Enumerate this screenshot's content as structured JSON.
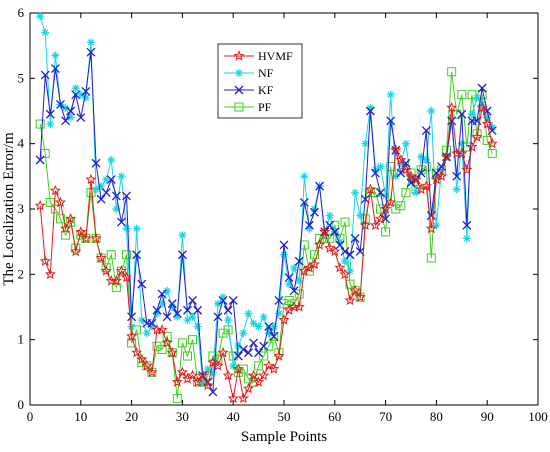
{
  "chart_data": {
    "type": "line",
    "title": "",
    "xlabel": "Sample Points",
    "ylabel": "The Localization Error/m",
    "xlim": [
      0,
      100
    ],
    "ylim": [
      0,
      6
    ],
    "xticks": [
      0,
      10,
      20,
      30,
      40,
      50,
      60,
      70,
      80,
      90,
      100
    ],
    "yticks": [
      0,
      1,
      2,
      3,
      4,
      5,
      6
    ],
    "grid": false,
    "legend_position": "top-center",
    "x": [
      2,
      3,
      4,
      5,
      6,
      7,
      8,
      9,
      10,
      11,
      12,
      13,
      14,
      15,
      16,
      17,
      18,
      19,
      20,
      21,
      22,
      23,
      24,
      25,
      26,
      27,
      28,
      29,
      30,
      31,
      32,
      33,
      34,
      35,
      36,
      37,
      38,
      39,
      40,
      41,
      42,
      43,
      44,
      45,
      46,
      47,
      48,
      49,
      50,
      51,
      52,
      53,
      54,
      55,
      56,
      57,
      58,
      59,
      60,
      61,
      62,
      63,
      64,
      65,
      66,
      67,
      68,
      69,
      70,
      71,
      72,
      73,
      74,
      75,
      76,
      77,
      78,
      79,
      80,
      81,
      82,
      83,
      84,
      85,
      86,
      87,
      88,
      89,
      90,
      91
    ],
    "series": [
      {
        "name": "HVMF",
        "color": "#e31a1c",
        "marker": "star",
        "values": [
          3.05,
          2.2,
          2.0,
          3.28,
          3.1,
          2.7,
          2.85,
          2.35,
          2.65,
          2.55,
          3.45,
          2.55,
          2.25,
          2.05,
          1.9,
          1.9,
          2.05,
          1.95,
          1.05,
          0.8,
          0.7,
          0.6,
          0.5,
          1.15,
          1.15,
          0.95,
          0.8,
          0.35,
          0.5,
          0.4,
          0.45,
          0.35,
          0.45,
          0.3,
          0.65,
          0.6,
          0.8,
          0.45,
          0.1,
          0.55,
          0.1,
          0.25,
          0.45,
          0.35,
          0.45,
          0.6,
          0.55,
          0.75,
          1.3,
          1.45,
          1.5,
          1.5,
          2.05,
          2.1,
          2.15,
          2.45,
          2.65,
          2.4,
          2.35,
          2.1,
          2.0,
          1.6,
          1.75,
          1.65,
          2.75,
          3.3,
          2.75,
          2.85,
          3.0,
          3.1,
          3.9,
          3.75,
          3.6,
          3.5,
          3.45,
          3.3,
          3.35,
          2.7,
          3.45,
          3.5,
          3.8,
          4.55,
          3.85,
          3.85,
          3.6,
          3.95,
          4.1,
          4.55,
          4.3,
          4.0
        ]
      },
      {
        "name": "NF",
        "color": "#19d3e8",
        "marker": "asterisk",
        "values": [
          5.95,
          5.7,
          4.3,
          5.35,
          4.6,
          4.55,
          4.4,
          4.85,
          4.75,
          4.7,
          5.55,
          3.3,
          3.35,
          3.45,
          3.75,
          3.0,
          3.5,
          2.7,
          1.2,
          2.7,
          1.3,
          1.1,
          1.2,
          1.4,
          1.55,
          1.75,
          1.5,
          1.35,
          2.6,
          1.3,
          1.35,
          1.2,
          0.35,
          0.55,
          0.5,
          1.55,
          1.65,
          1.3,
          0.6,
          0.9,
          1.1,
          1.4,
          1.25,
          1.2,
          1.35,
          1.1,
          1.2,
          1.4,
          2.3,
          1.85,
          2.1,
          1.9,
          3.5,
          2.7,
          3.0,
          3.35,
          2.6,
          2.9,
          2.65,
          2.5,
          2.2,
          2.05,
          3.25,
          2.9,
          4.0,
          4.55,
          3.6,
          3.65,
          3.2,
          4.75,
          3.5,
          3.7,
          4.0,
          3.45,
          3.25,
          3.8,
          3.75,
          4.5,
          2.75,
          3.6,
          3.8,
          4.4,
          3.3,
          4.0,
          2.55,
          4.45,
          4.7,
          4.6,
          4.4,
          4.25
        ]
      },
      {
        "name": "KF",
        "color": "#1f1fcc",
        "marker": "x",
        "values": [
          3.75,
          5.05,
          4.45,
          5.15,
          4.6,
          4.35,
          4.5,
          4.75,
          4.4,
          4.8,
          5.4,
          3.7,
          3.15,
          3.25,
          3.45,
          3.2,
          2.8,
          3.2,
          1.35,
          2.3,
          1.85,
          1.25,
          1.25,
          1.45,
          1.7,
          1.35,
          1.55,
          1.4,
          2.3,
          1.45,
          1.6,
          1.45,
          0.45,
          0.35,
          0.2,
          1.35,
          1.6,
          1.45,
          1.6,
          0.75,
          0.85,
          0.8,
          0.95,
          0.8,
          0.9,
          1.2,
          1.05,
          1.6,
          2.45,
          1.95,
          1.75,
          2.2,
          3.1,
          2.75,
          2.95,
          3.35,
          2.65,
          2.75,
          2.65,
          2.45,
          2.35,
          2.3,
          2.55,
          2.35,
          3.15,
          4.5,
          3.55,
          3.25,
          2.85,
          4.35,
          3.9,
          3.55,
          3.7,
          3.4,
          3.45,
          3.55,
          4.2,
          2.9,
          3.55,
          3.65,
          3.8,
          4.35,
          3.5,
          4.45,
          2.75,
          4.35,
          4.35,
          4.85,
          4.5,
          4.2
        ]
      },
      {
        "name": "PF",
        "color": "#3ecf1e",
        "marker": "square",
        "values": [
          4.3,
          3.85,
          3.1,
          3.0,
          2.85,
          2.6,
          2.8,
          2.4,
          2.6,
          2.55,
          3.25,
          2.55,
          2.25,
          2.1,
          2.3,
          1.8,
          2.05,
          2.3,
          0.95,
          1.15,
          0.65,
          0.6,
          0.5,
          0.9,
          0.85,
          1.05,
          0.8,
          0.1,
          0.95,
          0.75,
          1.0,
          0.35,
          0.35,
          0.45,
          0.75,
          0.7,
          1.1,
          1.15,
          0.75,
          0.5,
          0.55,
          0.4,
          0.35,
          0.6,
          0.75,
          0.9,
          1.05,
          0.8,
          1.55,
          1.6,
          1.55,
          1.7,
          2.45,
          2.05,
          2.3,
          2.55,
          2.55,
          2.55,
          2.75,
          2.55,
          2.8,
          1.85,
          1.75,
          1.65,
          2.85,
          3.25,
          3.25,
          3.0,
          2.65,
          3.65,
          3.0,
          3.05,
          3.25,
          3.55,
          3.3,
          3.6,
          3.65,
          2.25,
          3.55,
          3.6,
          3.9,
          5.1,
          4.45,
          4.75,
          3.95,
          4.75,
          4.15,
          4.75,
          4.05,
          3.85
        ]
      }
    ]
  }
}
